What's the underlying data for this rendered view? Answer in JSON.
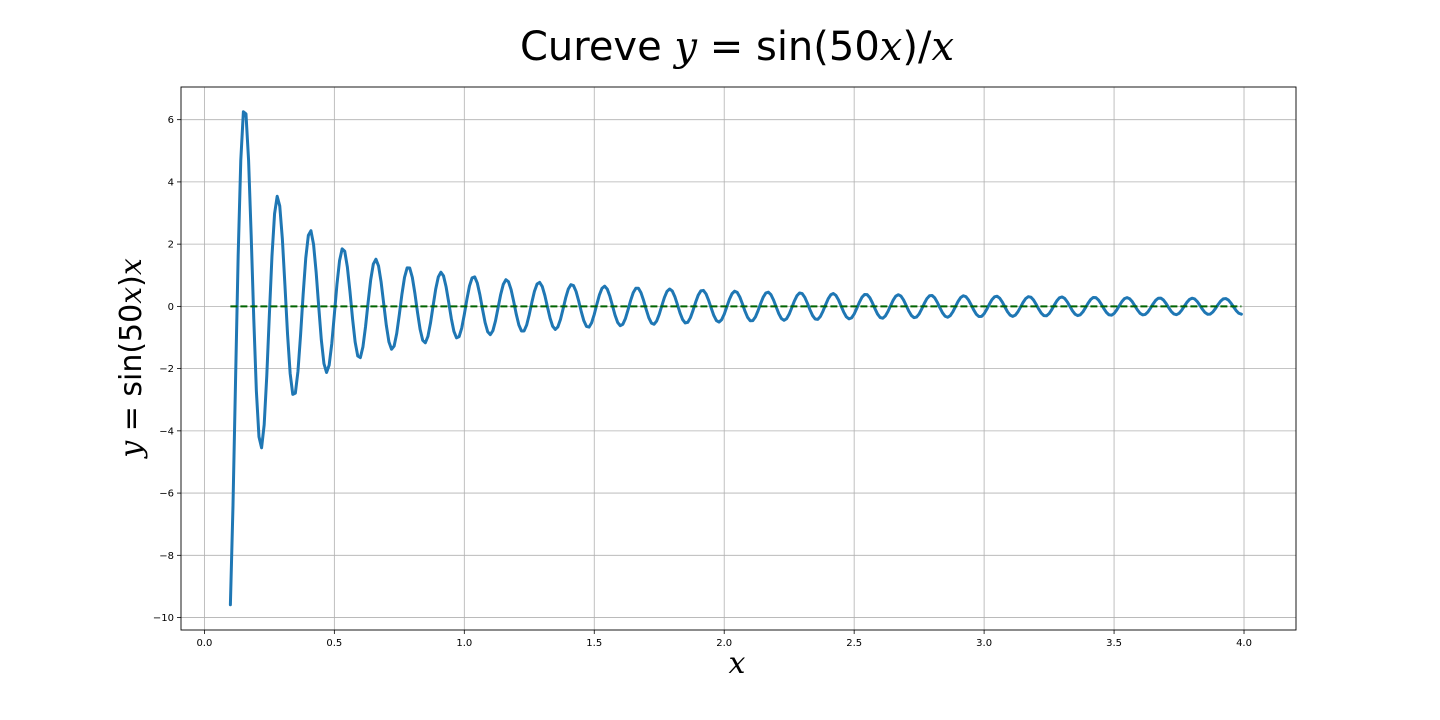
{
  "chart_data": {
    "type": "line",
    "title": "Cureve y = sin(50x)/x",
    "title_parts": {
      "prefix": "Cureve ",
      "y": "y",
      "eq": " = sin(50",
      "x1": "x",
      "mid": ")/",
      "x2": "x"
    },
    "xlabel": "x",
    "ylabel": "y = sin(50x)x",
    "ylabel_parts": {
      "y": "y",
      "eq": " = sin(50",
      "x": "x",
      "close": ")",
      "x2": "x"
    },
    "xlim": [
      -0.09,
      4.2
    ],
    "ylim": [
      -10.4,
      7.05
    ],
    "xticks": [
      0.0,
      0.5,
      1.0,
      1.5,
      2.0,
      2.5,
      3.0,
      3.5,
      4.0
    ],
    "xtick_labels": [
      "0.0",
      "0.5",
      "1.0",
      "1.5",
      "2.0",
      "2.5",
      "3.0",
      "3.5",
      "4.0"
    ],
    "yticks": [
      -10,
      -8,
      -6,
      -4,
      -2,
      0,
      2,
      4,
      6
    ],
    "ytick_labels": [
      "−10",
      "−8",
      "−6",
      "−4",
      "−2",
      "0",
      "2",
      "4",
      "6"
    ],
    "grid": true,
    "series": [
      {
        "function": "sin(50x)/x",
        "x_start": 0.1,
        "x_end": 3.99,
        "x_step": 0.01,
        "color": "#1f77b4",
        "style": "solid"
      },
      {
        "x": [
          0.1,
          3.99
        ],
        "y": [
          0,
          0
        ],
        "color": "#006400",
        "style": "dashed"
      }
    ]
  }
}
